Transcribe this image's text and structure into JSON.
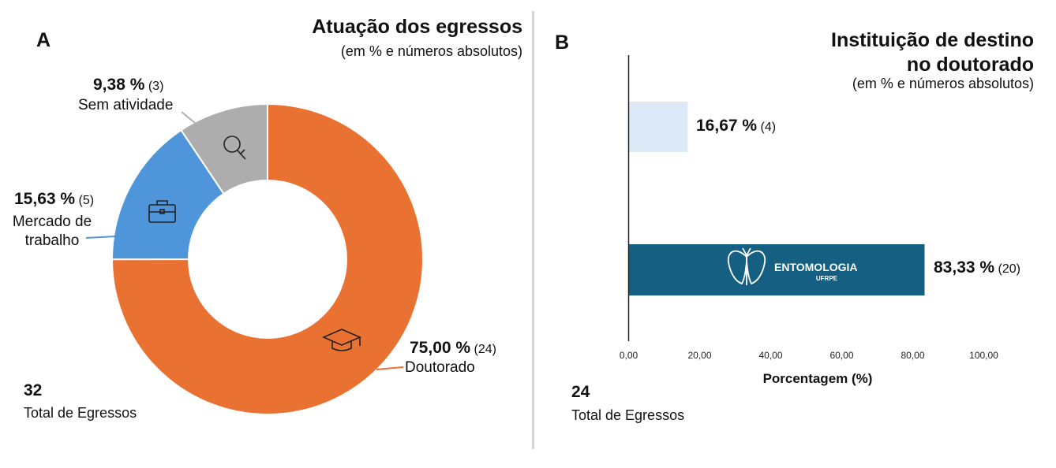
{
  "panel_a": {
    "letter": "A",
    "title": "Atuação dos egressos",
    "subtitle": "(em % e números absolutos)",
    "total": {
      "value": "32",
      "label": "Total de Egressos"
    }
  },
  "panel_b": {
    "letter": "B",
    "title_line1": "Instituição de destino",
    "title_line2": "no doutorado",
    "subtitle": "(em % e números absolutos)",
    "total": {
      "value": "24",
      "label": "Total de Egressos"
    },
    "logo": {
      "name": "ENTOMOLOGIA",
      "sub": "UFRPE"
    }
  },
  "chart_data": [
    {
      "type": "pie",
      "variant": "donut",
      "title": "Atuação dos egressos",
      "subtitle": "(em % e números absolutos)",
      "slices": [
        {
          "key": "doutorado",
          "label": "Doutorado",
          "value": 75.0,
          "count": 24,
          "percent_text": "75,00 %",
          "count_text": "(24)",
          "color": "#E97132",
          "icon": "graduation-cap-icon"
        },
        {
          "key": "mercado",
          "label_lines": [
            "Mercado de",
            "trabalho"
          ],
          "value": 15.63,
          "count": 5,
          "percent_text": "15,63 %",
          "count_text": "(5)",
          "color": "#4E95D9",
          "icon": "briefcase-icon"
        },
        {
          "key": "sem",
          "label": "Sem atividade",
          "value": 9.38,
          "count": 3,
          "percent_text": "9,38 %",
          "count_text": "(3)",
          "color": "#ADADAD",
          "icon": "magnifier-icon"
        }
      ]
    },
    {
      "type": "bar",
      "orientation": "horizontal",
      "title": "Instituição de destino no doutorado",
      "subtitle": "(em % e números absolutos)",
      "xlabel": "Porcentagem (%)",
      "xlim": [
        0,
        100
      ],
      "xticks": [
        0,
        20,
        40,
        60,
        80,
        100
      ],
      "xtick_labels": [
        "0,00",
        "20,00",
        "40,00",
        "60,00",
        "80,00",
        "100,00"
      ],
      "bars": [
        {
          "key": "other",
          "value": 16.67,
          "count": 4,
          "percent_text": "16,67 %",
          "count_text": "(4)",
          "color": "#DCEAF7"
        },
        {
          "key": "ufrpe",
          "value": 83.33,
          "count": 20,
          "percent_text": "83,33 %",
          "count_text": "(20)",
          "color": "#156082",
          "logo": "ENTOMOLOGIA UFRPE"
        }
      ]
    }
  ]
}
